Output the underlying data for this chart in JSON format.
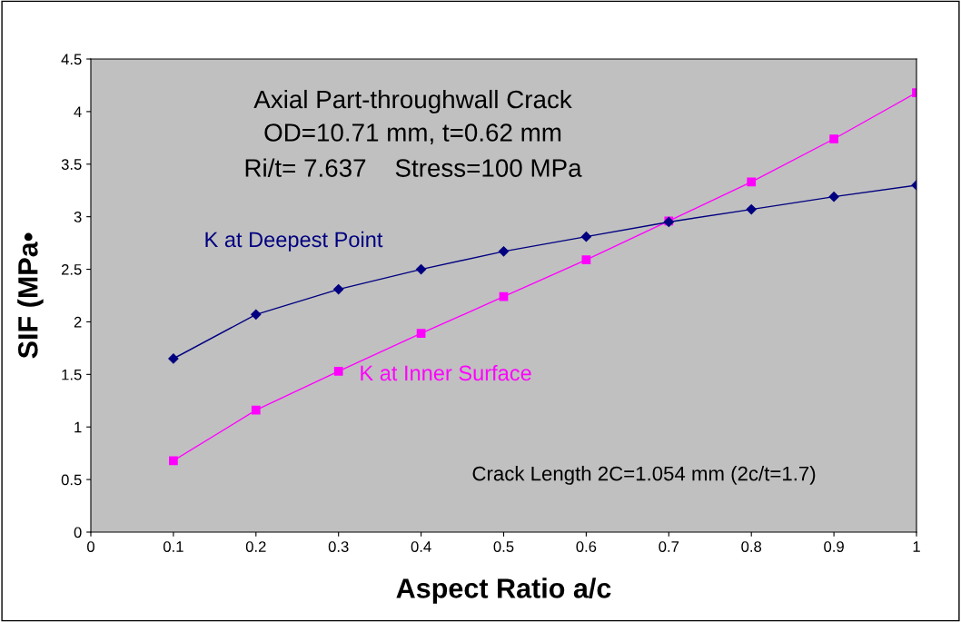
{
  "chart_data": {
    "type": "line",
    "xlabel": "Aspect Ratio a/c",
    "ylabel": "SIF (MPa•",
    "x": [
      0.1,
      0.2,
      0.3,
      0.4,
      0.5,
      0.6,
      0.7,
      0.8,
      0.9,
      1.0
    ],
    "series": [
      {
        "name": "K at Deepest Point",
        "color": "#000080",
        "marker": "diamond",
        "values": [
          1.65,
          2.07,
          2.31,
          2.5,
          2.67,
          2.81,
          2.95,
          3.07,
          3.19,
          3.3
        ]
      },
      {
        "name": "K at Inner Surface",
        "color": "#ff00ff",
        "marker": "square",
        "values": [
          0.68,
          1.16,
          1.53,
          1.89,
          2.24,
          2.59,
          2.96,
          3.33,
          3.74,
          4.18
        ]
      }
    ],
    "annotations": [
      "Axial Part-throughwall Crack",
      "OD=10.71 mm, t=0.62 mm",
      "Ri/t= 7.637    Stress=100 MPa",
      "Crack Length 2C=1.054 mm (2c/t=1.7)"
    ],
    "xlim": [
      0,
      1
    ],
    "xticks": [
      0,
      0.1,
      0.2,
      0.3,
      0.4,
      0.5,
      0.6,
      0.7,
      0.8,
      0.9,
      1
    ],
    "ylim": [
      0,
      4.5
    ],
    "yticks": [
      0,
      0.5,
      1,
      1.5,
      2,
      2.5,
      3,
      3.5,
      4,
      4.5
    ],
    "grid": false,
    "legend": false,
    "line_style": "solid"
  }
}
